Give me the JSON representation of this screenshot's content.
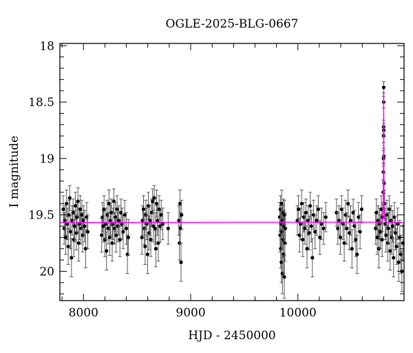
{
  "chart_data": {
    "type": "scatter",
    "title": "OGLE-2025-BLG-0667",
    "xlabel": "HJD - 2450000",
    "ylabel": "I magnitude",
    "xlim": [
      7780,
      10990
    ],
    "ylim": [
      17.98,
      20.26
    ],
    "y_inverted": true,
    "xticks": [
      8000,
      9000,
      10000
    ],
    "xtick_labels": [
      "8000",
      "9000",
      "10000"
    ],
    "x_minor_step": 200,
    "yticks": [
      18,
      18.5,
      19,
      19.5,
      20
    ],
    "ytick_labels": [
      "18",
      "18.5",
      "19",
      "19.5",
      "20"
    ],
    "y_minor_step": 0.1,
    "grid": false,
    "colors": {
      "points": "#000000",
      "errorbars": "#555555",
      "model": "#ff00ff"
    },
    "points_format": [
      "hjd",
      "mag",
      "err"
    ],
    "points": [
      [
        7812,
        19.45,
        0.12
      ],
      [
        7820,
        19.62,
        0.14
      ],
      [
        7828,
        19.55,
        0.13
      ],
      [
        7835,
        19.7,
        0.15
      ],
      [
        7842,
        19.4,
        0.12
      ],
      [
        7850,
        19.58,
        0.14
      ],
      [
        7858,
        19.78,
        0.16
      ],
      [
        7865,
        19.5,
        0.13
      ],
      [
        7872,
        19.35,
        0.11
      ],
      [
        7880,
        19.65,
        0.15
      ],
      [
        7888,
        19.88,
        0.17
      ],
      [
        7895,
        19.55,
        0.13
      ],
      [
        7903,
        19.48,
        0.12
      ],
      [
        7910,
        19.72,
        0.15
      ],
      [
        7918,
        19.6,
        0.14
      ],
      [
        7925,
        19.42,
        0.12
      ],
      [
        7933,
        19.66,
        0.15
      ],
      [
        7940,
        19.52,
        0.13
      ],
      [
        7948,
        19.38,
        0.12
      ],
      [
        7955,
        19.75,
        0.16
      ],
      [
        7962,
        19.58,
        0.14
      ],
      [
        7970,
        19.45,
        0.12
      ],
      [
        7978,
        19.62,
        0.14
      ],
      [
        7985,
        19.5,
        0.13
      ],
      [
        7993,
        19.68,
        0.15
      ],
      [
        8000,
        19.55,
        0.13
      ],
      [
        8010,
        19.6,
        0.14
      ],
      [
        8020,
        19.8,
        0.17
      ],
      [
        8030,
        19.52,
        0.13
      ],
      [
        8040,
        19.65,
        0.15
      ],
      [
        8170,
        19.68,
        0.15
      ],
      [
        8178,
        19.52,
        0.13
      ],
      [
        8185,
        19.6,
        0.14
      ],
      [
        8192,
        19.45,
        0.12
      ],
      [
        8200,
        19.72,
        0.15
      ],
      [
        8208,
        19.58,
        0.14
      ],
      [
        8215,
        19.82,
        0.17
      ],
      [
        8222,
        19.5,
        0.13
      ],
      [
        8230,
        19.62,
        0.14
      ],
      [
        8238,
        19.4,
        0.12
      ],
      [
        8245,
        19.7,
        0.16
      ],
      [
        8252,
        19.55,
        0.13
      ],
      [
        8260,
        19.48,
        0.12
      ],
      [
        8268,
        19.75,
        0.16
      ],
      [
        8275,
        19.58,
        0.14
      ],
      [
        8283,
        19.38,
        0.11
      ],
      [
        8290,
        19.62,
        0.14
      ],
      [
        8298,
        19.52,
        0.13
      ],
      [
        8305,
        19.68,
        0.15
      ],
      [
        8313,
        19.45,
        0.12
      ],
      [
        8320,
        19.6,
        0.14
      ],
      [
        8330,
        19.55,
        0.13
      ],
      [
        8340,
        19.72,
        0.15
      ],
      [
        8350,
        19.48,
        0.12
      ],
      [
        8360,
        19.58,
        0.14
      ],
      [
        8370,
        19.65,
        0.15
      ],
      [
        8385,
        19.5,
        0.13
      ],
      [
        8400,
        19.62,
        0.14
      ],
      [
        8410,
        19.85,
        0.17
      ],
      [
        8418,
        19.7,
        0.16
      ],
      [
        8545,
        19.7,
        0.15
      ],
      [
        8552,
        19.55,
        0.13
      ],
      [
        8560,
        19.45,
        0.12
      ],
      [
        8568,
        19.62,
        0.14
      ],
      [
        8575,
        19.78,
        0.16
      ],
      [
        8582,
        19.5,
        0.13
      ],
      [
        8590,
        19.58,
        0.14
      ],
      [
        8598,
        19.85,
        0.17
      ],
      [
        8605,
        19.42,
        0.12
      ],
      [
        8612,
        19.66,
        0.15
      ],
      [
        8620,
        19.55,
        0.13
      ],
      [
        8628,
        19.72,
        0.15
      ],
      [
        8636,
        19.48,
        0.12
      ],
      [
        8645,
        19.38,
        0.11
      ],
      [
        8652,
        19.6,
        0.14
      ],
      [
        8660,
        19.35,
        0.11
      ],
      [
        8668,
        19.62,
        0.14
      ],
      [
        8675,
        19.8,
        0.16
      ],
      [
        8682,
        19.4,
        0.12
      ],
      [
        8690,
        19.55,
        0.13
      ],
      [
        8698,
        19.75,
        0.16
      ],
      [
        8705,
        19.45,
        0.12
      ],
      [
        8715,
        19.6,
        0.14
      ],
      [
        8725,
        19.5,
        0.13
      ],
      [
        8740,
        19.58,
        0.14
      ],
      [
        8790,
        19.62,
        0.14
      ],
      [
        8890,
        19.55,
        0.13
      ],
      [
        8895,
        19.75,
        0.15
      ],
      [
        8900,
        19.4,
        0.12
      ],
      [
        8905,
        19.62,
        0.14
      ],
      [
        8910,
        19.92,
        0.17
      ],
      [
        8915,
        19.5,
        0.13
      ],
      [
        9830,
        19.52,
        0.13
      ],
      [
        9834,
        19.68,
        0.15
      ],
      [
        9837,
        19.45,
        0.12
      ],
      [
        9840,
        19.8,
        0.17
      ],
      [
        9843,
        19.58,
        0.14
      ],
      [
        9846,
        19.92,
        0.18
      ],
      [
        9849,
        19.4,
        0.12
      ],
      [
        9852,
        19.65,
        0.15
      ],
      [
        9855,
        20.02,
        0.18
      ],
      [
        9858,
        19.55,
        0.13
      ],
      [
        9861,
        19.72,
        0.16
      ],
      [
        9864,
        19.48,
        0.12
      ],
      [
        9867,
        19.85,
        0.17
      ],
      [
        9870,
        19.6,
        0.14
      ],
      [
        9873,
        20.05,
        0.19
      ],
      [
        9876,
        19.5,
        0.13
      ],
      [
        9879,
        19.75,
        0.16
      ],
      [
        9882,
        19.62,
        0.14
      ],
      [
        9995,
        19.55,
        0.13
      ],
      [
        10005,
        19.45,
        0.12
      ],
      [
        10015,
        19.68,
        0.15
      ],
      [
        10025,
        19.58,
        0.14
      ],
      [
        10035,
        19.4,
        0.12
      ],
      [
        10045,
        19.72,
        0.15
      ],
      [
        10055,
        19.52,
        0.13
      ],
      [
        10065,
        19.62,
        0.14
      ],
      [
        10075,
        19.48,
        0.12
      ],
      [
        10085,
        19.8,
        0.17
      ],
      [
        10095,
        19.55,
        0.13
      ],
      [
        10105,
        19.66,
        0.15
      ],
      [
        10115,
        19.42,
        0.12
      ],
      [
        10125,
        19.6,
        0.14
      ],
      [
        10135,
        19.88,
        0.17
      ],
      [
        10145,
        19.5,
        0.13
      ],
      [
        10160,
        19.65,
        0.15
      ],
      [
        10175,
        19.55,
        0.13
      ],
      [
        10190,
        19.45,
        0.12
      ],
      [
        10205,
        19.7,
        0.15
      ],
      [
        10220,
        19.58,
        0.14
      ],
      [
        10240,
        19.62,
        0.14
      ],
      [
        10260,
        19.52,
        0.13
      ],
      [
        10360,
        19.48,
        0.12
      ],
      [
        10372,
        19.62,
        0.14
      ],
      [
        10384,
        19.55,
        0.13
      ],
      [
        10396,
        19.7,
        0.15
      ],
      [
        10408,
        19.45,
        0.12
      ],
      [
        10420,
        19.58,
        0.14
      ],
      [
        10432,
        19.75,
        0.16
      ],
      [
        10444,
        19.5,
        0.13
      ],
      [
        10456,
        19.62,
        0.14
      ],
      [
        10468,
        19.4,
        0.12
      ],
      [
        10480,
        19.66,
        0.15
      ],
      [
        10492,
        19.55,
        0.13
      ],
      [
        10504,
        19.8,
        0.17
      ],
      [
        10516,
        19.48,
        0.12
      ],
      [
        10528,
        19.6,
        0.14
      ],
      [
        10540,
        19.72,
        0.15
      ],
      [
        10552,
        19.85,
        0.17
      ],
      [
        10565,
        19.52,
        0.13
      ],
      [
        10580,
        19.65,
        0.15
      ],
      [
        10595,
        19.45,
        0.12
      ],
      [
        10725,
        19.62,
        0.14
      ],
      [
        10732,
        19.48,
        0.12
      ],
      [
        10740,
        19.7,
        0.15
      ],
      [
        10748,
        19.55,
        0.13
      ],
      [
        10755,
        19.8,
        0.17
      ],
      [
        10762,
        19.58,
        0.14
      ],
      [
        10770,
        19.65,
        0.15
      ],
      [
        10778,
        19.45,
        0.12
      ],
      [
        10785,
        19.72,
        0.15
      ],
      [
        10790,
        19.52,
        0.13
      ],
      [
        10795,
        19.3,
        0.11
      ],
      [
        10797,
        19.12,
        0.08
      ],
      [
        10798,
        19.0,
        0.07
      ],
      [
        10799,
        18.8,
        0.06
      ],
      [
        10799.5,
        18.72,
        0.06
      ],
      [
        10800,
        18.5,
        0.05
      ],
      [
        10800.3,
        18.37,
        0.05
      ],
      [
        10801,
        18.75,
        0.06
      ],
      [
        10802,
        18.98,
        0.07
      ],
      [
        10804,
        19.22,
        0.09
      ],
      [
        10808,
        19.4,
        0.12
      ],
      [
        10815,
        19.58,
        0.14
      ],
      [
        10822,
        19.68,
        0.15
      ],
      [
        10830,
        19.5,
        0.13
      ],
      [
        10838,
        19.75,
        0.16
      ],
      [
        10845,
        19.62,
        0.14
      ],
      [
        10852,
        19.45,
        0.12
      ],
      [
        10860,
        19.82,
        0.17
      ],
      [
        10868,
        19.55,
        0.13
      ],
      [
        10876,
        19.7,
        0.15
      ],
      [
        10884,
        19.6,
        0.14
      ],
      [
        10892,
        19.88,
        0.17
      ],
      [
        10900,
        19.52,
        0.13
      ],
      [
        10910,
        19.66,
        0.15
      ],
      [
        10920,
        19.78,
        0.16
      ],
      [
        10930,
        19.58,
        0.14
      ],
      [
        10940,
        19.92,
        0.17
      ],
      [
        10950,
        19.7,
        0.15
      ],
      [
        10960,
        19.85,
        0.17
      ],
      [
        10970,
        20.0,
        0.18
      ],
      [
        10980,
        19.75,
        0.16
      ]
    ],
    "model": {
      "name": "",
      "x": [
        7780,
        10780,
        10790,
        10794,
        10796,
        10798,
        10799,
        10800,
        10801,
        10802,
        10804,
        10806,
        10810,
        10820,
        10990
      ],
      "y": [
        19.568,
        19.565,
        19.55,
        19.5,
        19.42,
        19.15,
        18.9,
        18.4,
        18.9,
        19.15,
        19.42,
        19.5,
        19.55,
        19.565,
        19.568
      ]
    }
  }
}
